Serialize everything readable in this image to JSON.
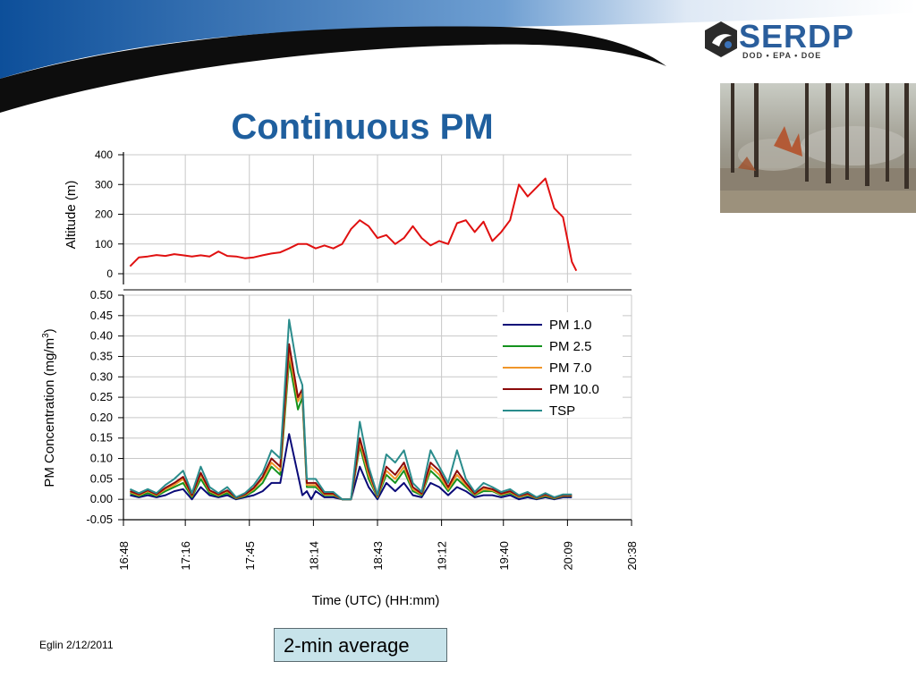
{
  "slide": {
    "title": "Continuous PM",
    "footer": "Eglin 2/12/2011",
    "note": "2-min average",
    "logo": {
      "text": "SERDP",
      "sub": "DOD • EPA • DOE"
    },
    "colors": {
      "title": "#1f5f9e",
      "banner": "#1b5fa8",
      "note_bg": "#c7e3ea"
    }
  },
  "chart_data": [
    {
      "type": "line",
      "ylabel": "Altitude (m)",
      "ylim": [
        0,
        400
      ],
      "yticks": [
        0,
        100,
        200,
        300,
        400
      ],
      "xlim": [
        "16:48",
        "20:38"
      ],
      "grid": true,
      "series": [
        {
          "color": "#e01010",
          "x": [
            "16:51",
            "16:55",
            "16:59",
            "17:03",
            "17:07",
            "17:11",
            "17:15",
            "17:19",
            "17:23",
            "17:27",
            "17:31",
            "17:35",
            "17:39",
            "17:43",
            "17:47",
            "17:51",
            "17:55",
            "17:59",
            "18:03",
            "18:07",
            "18:11",
            "18:15",
            "18:19",
            "18:23",
            "18:27",
            "18:31",
            "18:35",
            "18:39",
            "18:43",
            "18:47",
            "18:51",
            "18:55",
            "18:59",
            "19:03",
            "19:07",
            "19:11",
            "19:15",
            "19:19",
            "19:23",
            "19:27",
            "19:31",
            "19:35",
            "19:39",
            "19:43",
            "19:47",
            "19:51",
            "19:55",
            "19:59",
            "20:03",
            "20:07",
            "20:11",
            "20:13"
          ],
          "values": [
            25,
            55,
            58,
            63,
            60,
            66,
            62,
            58,
            62,
            58,
            75,
            60,
            58,
            52,
            55,
            62,
            68,
            72,
            85,
            100,
            100,
            85,
            95,
            85,
            100,
            150,
            180,
            160,
            120,
            130,
            100,
            120,
            160,
            120,
            95,
            110,
            100,
            170,
            180,
            140,
            175,
            110,
            140,
            180,
            300,
            260,
            290,
            320,
            220,
            190,
            40,
            10
          ]
        }
      ]
    },
    {
      "type": "line",
      "ylabel": "PM Concentration (mg/m3)",
      "xlabel": "Time (UTC) (HH:mm)",
      "ylim": [
        -0.05,
        0.5
      ],
      "yticks": [
        -0.05,
        0.0,
        0.05,
        0.1,
        0.15,
        0.2,
        0.25,
        0.3,
        0.35,
        0.4,
        0.45,
        0.5
      ],
      "ytick_labels": [
        "-0.05",
        "0.00",
        "0.05",
        "0.10",
        "0.15",
        "0.20",
        "0.25",
        "0.30",
        "0.35",
        "0.40",
        "0.45",
        "0.50"
      ],
      "xticks": [
        "16:48",
        "17:16",
        "17:45",
        "18:14",
        "18:43",
        "19:12",
        "19:40",
        "20:09",
        "20:38"
      ],
      "legend": "top-right",
      "grid": true,
      "x": [
        "16:51",
        "16:55",
        "16:59",
        "17:03",
        "17:07",
        "17:11",
        "17:15",
        "17:19",
        "17:23",
        "17:27",
        "17:31",
        "17:35",
        "17:39",
        "17:43",
        "17:47",
        "17:51",
        "17:55",
        "17:59",
        "18:03",
        "18:07",
        "18:09",
        "18:11",
        "18:13",
        "18:15",
        "18:19",
        "18:23",
        "18:27",
        "18:31",
        "18:35",
        "18:39",
        "18:43",
        "18:47",
        "18:51",
        "18:55",
        "18:59",
        "19:03",
        "19:07",
        "19:11",
        "19:15",
        "19:19",
        "19:23",
        "19:27",
        "19:31",
        "19:35",
        "19:39",
        "19:43",
        "19:47",
        "19:51",
        "19:55",
        "19:59",
        "20:03",
        "20:07",
        "20:11"
      ],
      "series": [
        {
          "name": "PM 1.0",
          "color": "#0a0a78",
          "values": [
            0.01,
            0.005,
            0.01,
            0.005,
            0.01,
            0.02,
            0.025,
            0.0,
            0.03,
            0.01,
            0.005,
            0.01,
            0.0,
            0.005,
            0.01,
            0.02,
            0.04,
            0.04,
            0.16,
            0.06,
            0.01,
            0.02,
            0.0,
            0.02,
            0.005,
            0.005,
            0.0,
            0.0,
            0.08,
            0.03,
            0.0,
            0.04,
            0.02,
            0.04,
            0.01,
            0.005,
            0.04,
            0.03,
            0.01,
            0.03,
            0.02,
            0.005,
            0.01,
            0.01,
            0.005,
            0.01,
            0.0,
            0.005,
            0.0,
            0.005,
            0.0,
            0.005,
            0.005
          ]
        },
        {
          "name": "PM 2.5",
          "color": "#14921e",
          "values": [
            0.015,
            0.008,
            0.015,
            0.008,
            0.02,
            0.03,
            0.04,
            0.005,
            0.05,
            0.015,
            0.008,
            0.015,
            0.002,
            0.008,
            0.02,
            0.04,
            0.08,
            0.06,
            0.34,
            0.22,
            0.25,
            0.03,
            0.03,
            0.03,
            0.01,
            0.01,
            0.0,
            0.0,
            0.13,
            0.05,
            0.005,
            0.06,
            0.04,
            0.07,
            0.02,
            0.01,
            0.07,
            0.05,
            0.02,
            0.05,
            0.03,
            0.01,
            0.02,
            0.02,
            0.01,
            0.015,
            0.005,
            0.01,
            0.002,
            0.008,
            0.002,
            0.008,
            0.008
          ]
        },
        {
          "name": "PM 7.0",
          "color": "#f0962a",
          "values": [
            0.018,
            0.01,
            0.02,
            0.01,
            0.025,
            0.035,
            0.05,
            0.008,
            0.06,
            0.02,
            0.01,
            0.02,
            0.003,
            0.01,
            0.025,
            0.05,
            0.09,
            0.07,
            0.36,
            0.24,
            0.26,
            0.035,
            0.035,
            0.035,
            0.012,
            0.012,
            0.0,
            0.0,
            0.14,
            0.06,
            0.006,
            0.07,
            0.05,
            0.08,
            0.025,
            0.012,
            0.08,
            0.06,
            0.025,
            0.06,
            0.035,
            0.012,
            0.025,
            0.022,
            0.012,
            0.018,
            0.006,
            0.012,
            0.003,
            0.01,
            0.003,
            0.009,
            0.009
          ]
        },
        {
          "name": "PM 10.0",
          "color": "#8b0a0a",
          "values": [
            0.02,
            0.012,
            0.022,
            0.012,
            0.028,
            0.04,
            0.055,
            0.01,
            0.065,
            0.022,
            0.012,
            0.022,
            0.004,
            0.012,
            0.028,
            0.055,
            0.1,
            0.08,
            0.38,
            0.25,
            0.27,
            0.04,
            0.04,
            0.04,
            0.014,
            0.014,
            0.0,
            0.0,
            0.15,
            0.07,
            0.008,
            0.08,
            0.06,
            0.09,
            0.03,
            0.014,
            0.09,
            0.07,
            0.03,
            0.07,
            0.04,
            0.014,
            0.03,
            0.025,
            0.014,
            0.02,
            0.008,
            0.014,
            0.004,
            0.012,
            0.004,
            0.01,
            0.01
          ]
        },
        {
          "name": "TSP",
          "color": "#2a8c8c",
          "values": [
            0.025,
            0.015,
            0.025,
            0.015,
            0.035,
            0.05,
            0.07,
            0.015,
            0.08,
            0.03,
            0.015,
            0.03,
            0.005,
            0.015,
            0.035,
            0.065,
            0.12,
            0.1,
            0.44,
            0.31,
            0.28,
            0.05,
            0.05,
            0.05,
            0.018,
            0.018,
            0.0,
            0.0,
            0.19,
            0.08,
            0.01,
            0.11,
            0.09,
            0.12,
            0.04,
            0.018,
            0.12,
            0.08,
            0.04,
            0.12,
            0.05,
            0.018,
            0.04,
            0.03,
            0.018,
            0.025,
            0.01,
            0.018,
            0.005,
            0.015,
            0.005,
            0.012,
            0.012
          ]
        }
      ]
    }
  ]
}
